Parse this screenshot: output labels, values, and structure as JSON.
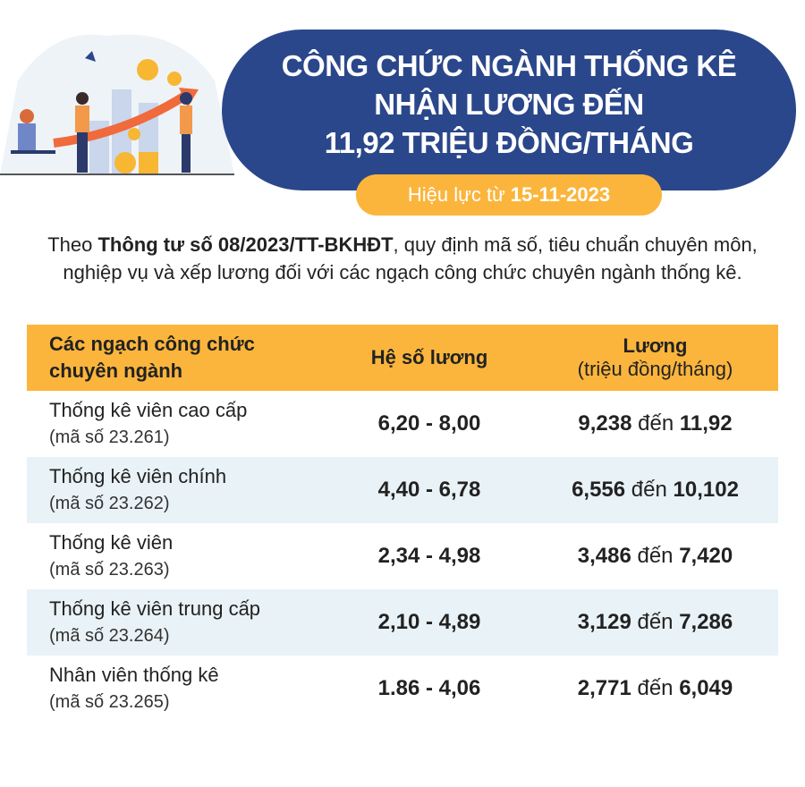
{
  "header": {
    "title_lines": [
      "CÔNG CHỨC NGÀNH THỐNG KÊ",
      "NHẬN LƯƠNG ĐẾN",
      "11,92 TRIỆU ĐỒNG/THÁNG"
    ],
    "effective_prefix": "Hiệu lực từ",
    "effective_date": "15-11-2023"
  },
  "intro": {
    "prefix": "Theo",
    "doc": "Thông tư số 08/2023/TT-BKHĐT",
    "suffix": ", quy định mã số, tiêu chuẩn chuyên môn, nghiệp vụ và xếp lương đối với các ngạch công chức chuyên ngành thống kê."
  },
  "table": {
    "headers": {
      "col1": "Các ngạch công chức chuyên ngành",
      "col2": "Hệ số lương",
      "col3": "Lương",
      "col3_sub": "(triệu đồng/tháng)"
    },
    "rows": [
      {
        "name": "Thống kê viên cao cấp",
        "code": "(mã số 23.261)",
        "coef": "6,20 - 8,00",
        "min": "9,238",
        "sep": "đến",
        "max": "11,92"
      },
      {
        "name": "Thống kê viên chính",
        "code": "(mã số 23.262)",
        "coef": "4,40 - 6,78",
        "min": "6,556",
        "sep": "đến",
        "max": "10,102"
      },
      {
        "name": "Thống kê viên",
        "code": "(mã số 23.263)",
        "coef": "2,34 - 4,98",
        "min": "3,486",
        "sep": "đến",
        "max": "7,420"
      },
      {
        "name": "Thống kê viên trung cấp",
        "code": "(mã số 23.264)",
        "coef": "2,10 - 4,89",
        "min": "3,129",
        "sep": "đến",
        "max": "7,286"
      },
      {
        "name": "Nhân viên thống kê",
        "code": "(mã số 23.265)",
        "coef": "1.86 - 4,06",
        "min": "2,771",
        "sep": "đến",
        "max": "6,049"
      }
    ]
  },
  "colors": {
    "navy": "#2b478b",
    "orange": "#fbb53c",
    "row_shade": "#e9f2f6"
  }
}
